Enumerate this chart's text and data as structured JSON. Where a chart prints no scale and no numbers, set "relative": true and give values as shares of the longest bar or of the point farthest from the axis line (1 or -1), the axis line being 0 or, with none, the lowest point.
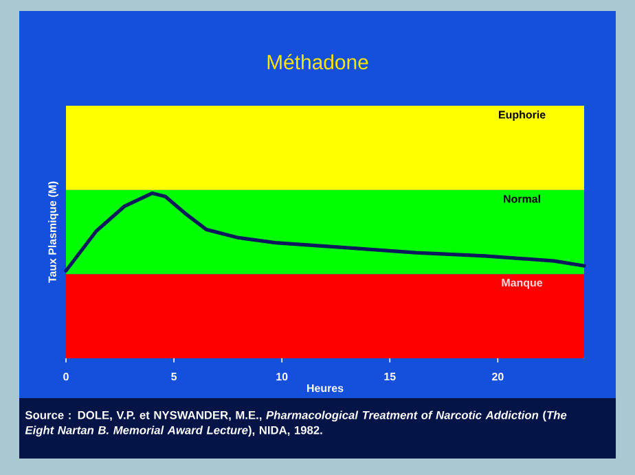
{
  "chart_data": {
    "type": "line",
    "title": "Méthadone",
    "xlabel": "Heures",
    "ylabel": "Taux Plasmique (M)",
    "relative": true,
    "xlim": [
      0,
      24
    ],
    "xticks": [
      0,
      5,
      10,
      15,
      20
    ],
    "grid": false,
    "tick_labels": "x",
    "series": [
      {
        "color": "#0a1a5a",
        "x": [
          0,
          1.4,
          2.7,
          4.0,
          4.6,
          5.5,
          6.5,
          8.0,
          9.7,
          13.0,
          16.2,
          19.4,
          22.6,
          24.0
        ],
        "values": [
          0.53,
          0.77,
          0.92,
          1.0,
          0.98,
          0.88,
          0.78,
          0.73,
          0.7,
          0.67,
          0.64,
          0.62,
          0.59,
          0.56
        ]
      }
    ],
    "bands": [
      {
        "axis": "y",
        "from": 0,
        "to": 0.51,
        "label": "Manque",
        "color": "#ff0000"
      },
      {
        "axis": "y",
        "from": 0.51,
        "to": 1.02,
        "label": "Normal",
        "color": "#00ff00"
      },
      {
        "axis": "y",
        "from": 1.02,
        "to": 1.53,
        "label": "Euphorie",
        "color": "#ffff00"
      }
    ],
    "annotations": [
      "Source : DOLE, V.P. et NYSWANDER, M.E., *Pharmacological Treatment of Narcotic Addiction* (*The Eight Nartan B. Memorial Award Lecture*), NIDA, 1982."
    ]
  }
}
